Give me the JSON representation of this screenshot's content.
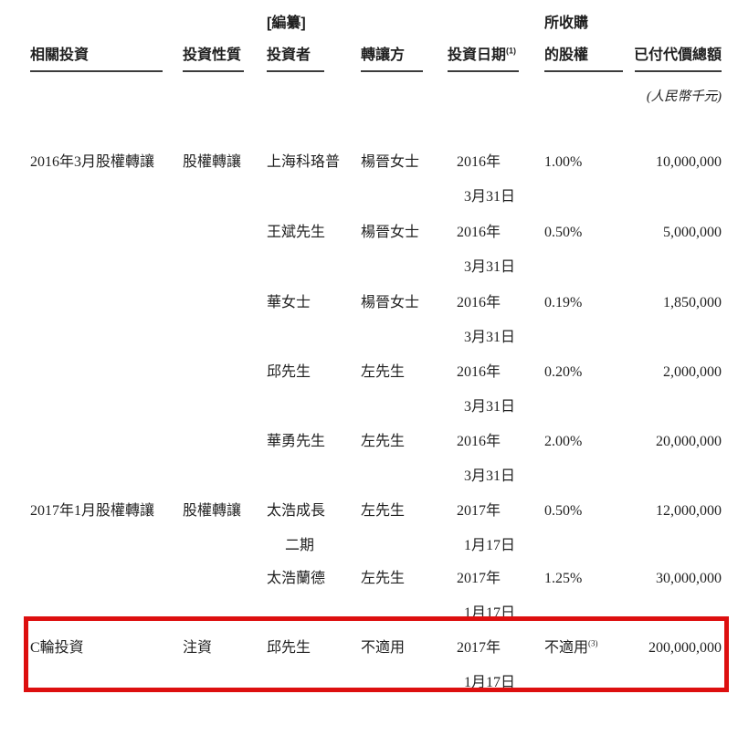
{
  "page": {
    "background_color": "#ffffff",
    "text_color": "#1f1f1f",
    "highlight_box_color": "#dd0f0f"
  },
  "table": {
    "compile_label": "[編纂]",
    "header": {
      "col1": "相關投資",
      "col2": "投資性質",
      "col3": "投資者",
      "col4": "轉讓方",
      "col5": "投資日期",
      "col5_sup": "(1)",
      "col6_line1": "所收購",
      "col6_line2": "的股權",
      "col7": "已付代價總額",
      "col7_unit_note": "(人民幣千元)"
    },
    "rows": [
      {
        "related": "2016年3月股權轉讓",
        "nature": "股權轉讓",
        "investor": "上海科珞普",
        "investor_line2": "",
        "transferor": "楊晉女士",
        "date_line1": "2016年",
        "date_line2": "3月31日",
        "equity": "1.00%",
        "equity_sup": "",
        "amount": "10,000,000",
        "highlighted": false
      },
      {
        "related": "",
        "nature": "",
        "investor": "王斌先生",
        "investor_line2": "",
        "transferor": "楊晉女士",
        "date_line1": "2016年",
        "date_line2": "3月31日",
        "equity": "0.50%",
        "equity_sup": "",
        "amount": "5,000,000",
        "highlighted": false
      },
      {
        "related": "",
        "nature": "",
        "investor": "華女士",
        "investor_line2": "",
        "transferor": "楊晉女士",
        "date_line1": "2016年",
        "date_line2": "3月31日",
        "equity": "0.19%",
        "equity_sup": "",
        "amount": "1,850,000",
        "highlighted": false
      },
      {
        "related": "",
        "nature": "",
        "investor": "邱先生",
        "investor_line2": "",
        "transferor": "左先生",
        "date_line1": "2016年",
        "date_line2": "3月31日",
        "equity": "0.20%",
        "equity_sup": "",
        "amount": "2,000,000",
        "highlighted": false
      },
      {
        "related": "",
        "nature": "",
        "investor": "華勇先生",
        "investor_line2": "",
        "transferor": "左先生",
        "date_line1": "2016年",
        "date_line2": "3月31日",
        "equity": "2.00%",
        "equity_sup": "",
        "amount": "20,000,000",
        "highlighted": false
      },
      {
        "related": "2017年1月股權轉讓",
        "nature": "股權轉讓",
        "investor": "太浩成長",
        "investor_line2": "二期",
        "transferor": "左先生",
        "date_line1": "2017年",
        "date_line2": "1月17日",
        "equity": "0.50%",
        "equity_sup": "",
        "amount": "12,000,000",
        "highlighted": false
      },
      {
        "related": "",
        "nature": "",
        "investor": "太浩蘭德",
        "investor_line2": "",
        "transferor": "左先生",
        "date_line1": "2017年",
        "date_line2": "1月17日",
        "equity": "1.25%",
        "equity_sup": "",
        "amount": "30,000,000",
        "highlighted": false
      },
      {
        "related": "C輪投資",
        "nature": "注資",
        "investor": "邱先生",
        "investor_line2": "",
        "transferor": "不適用",
        "date_line1": "2017年",
        "date_line2": "1月17日",
        "equity": "不適用",
        "equity_sup": "(3)",
        "amount": "200,000,000",
        "highlighted": true
      }
    ]
  }
}
